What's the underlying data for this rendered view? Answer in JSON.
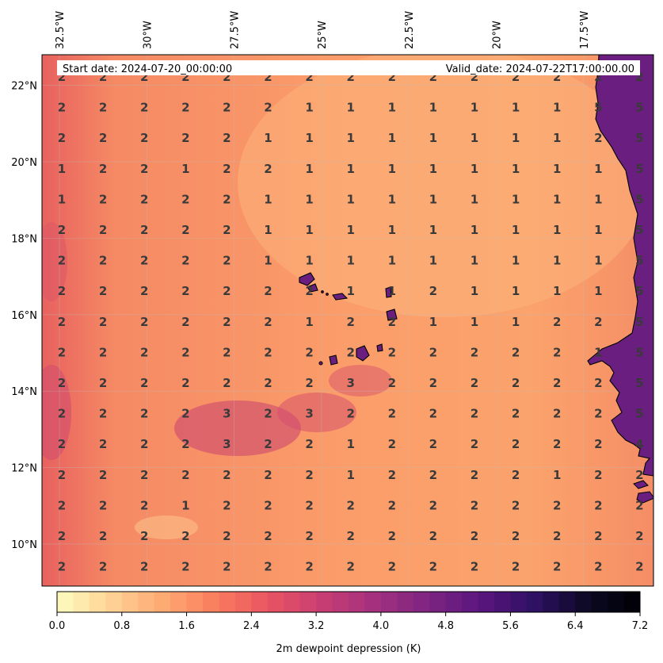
{
  "header": {
    "start_date": "Start date: 2024-07-20_00:00:00",
    "valid_date": "Valid_date: 2024-07-22T17:00:00.00"
  },
  "axes": {
    "lon_ticks": [
      "32.5°W",
      "30°W",
      "27.5°W",
      "25°W",
      "22.5°W",
      "20°W",
      "17.5°W"
    ],
    "lat_ticks": [
      "22°N",
      "20°N",
      "18°N",
      "16°N",
      "14°N",
      "12°N",
      "10°N"
    ]
  },
  "colorbar": {
    "label": "2m dewpoint depression (K)",
    "tick_labels": [
      "0.0",
      "0.8",
      "1.6",
      "2.4",
      "3.2",
      "4.0",
      "4.8",
      "5.6",
      "6.4",
      "7.2"
    ],
    "vmin": 0.0,
    "vmax": 7.2,
    "colormap": "magma_r",
    "stops": [
      "#fcfdbf",
      "#fed395",
      "#fea973",
      "#fa7d5e",
      "#e95462",
      "#c83e73",
      "#a3307e",
      "#7e2482",
      "#59157e",
      "#2f1163",
      "#0b0924",
      "#000004"
    ]
  },
  "colors": {
    "land": "#6a1f80",
    "coastline": "#000000",
    "value_text": "#3a3a3a"
  },
  "chart_data": {
    "type": "heatmap",
    "title": "",
    "lon_range": [
      -33.0,
      -15.5
    ],
    "lat_range": [
      8.9,
      22.8
    ],
    "grid_values": [
      [
        2,
        2,
        2,
        2,
        2,
        2,
        2,
        2,
        2,
        2,
        2,
        2,
        2,
        2,
        2
      ],
      [
        2,
        2,
        2,
        2,
        2,
        2,
        1,
        1,
        1,
        1,
        1,
        1,
        1,
        5,
        5
      ],
      [
        2,
        2,
        2,
        2,
        2,
        1,
        1,
        1,
        1,
        1,
        1,
        1,
        1,
        2,
        5
      ],
      [
        1,
        2,
        2,
        1,
        2,
        2,
        1,
        1,
        1,
        1,
        1,
        1,
        1,
        1,
        5
      ],
      [
        1,
        2,
        2,
        2,
        2,
        1,
        1,
        1,
        1,
        1,
        1,
        1,
        1,
        1,
        5
      ],
      [
        2,
        2,
        2,
        2,
        2,
        1,
        1,
        1,
        1,
        1,
        1,
        1,
        1,
        1,
        5
      ],
      [
        2,
        2,
        2,
        2,
        2,
        1,
        1,
        1,
        1,
        1,
        1,
        1,
        1,
        1,
        5
      ],
      [
        2,
        2,
        2,
        2,
        2,
        2,
        2,
        1,
        1,
        2,
        1,
        1,
        1,
        1,
        5
      ],
      [
        2,
        2,
        2,
        2,
        2,
        2,
        1,
        2,
        2,
        1,
        1,
        1,
        2,
        2,
        5
      ],
      [
        2,
        2,
        2,
        2,
        2,
        2,
        2,
        2,
        2,
        2,
        2,
        2,
        2,
        1,
        5
      ],
      [
        2,
        2,
        2,
        2,
        2,
        2,
        2,
        3,
        2,
        2,
        2,
        2,
        2,
        2,
        5
      ],
      [
        2,
        2,
        2,
        2,
        3,
        2,
        3,
        2,
        2,
        2,
        2,
        2,
        2,
        2,
        5
      ],
      [
        2,
        2,
        2,
        2,
        3,
        2,
        2,
        1,
        2,
        2,
        2,
        2,
        2,
        2,
        4
      ],
      [
        2,
        2,
        2,
        2,
        2,
        2,
        2,
        1,
        2,
        2,
        2,
        2,
        1,
        2,
        2
      ],
      [
        2,
        2,
        2,
        1,
        2,
        2,
        2,
        2,
        2,
        2,
        2,
        2,
        2,
        2,
        2
      ],
      [
        2,
        2,
        2,
        2,
        2,
        2,
        2,
        2,
        2,
        2,
        2,
        2,
        2,
        2,
        2
      ],
      [
        2,
        2,
        2,
        2,
        2,
        2,
        2,
        2,
        2,
        2,
        2,
        2,
        2,
        2,
        2
      ]
    ]
  }
}
